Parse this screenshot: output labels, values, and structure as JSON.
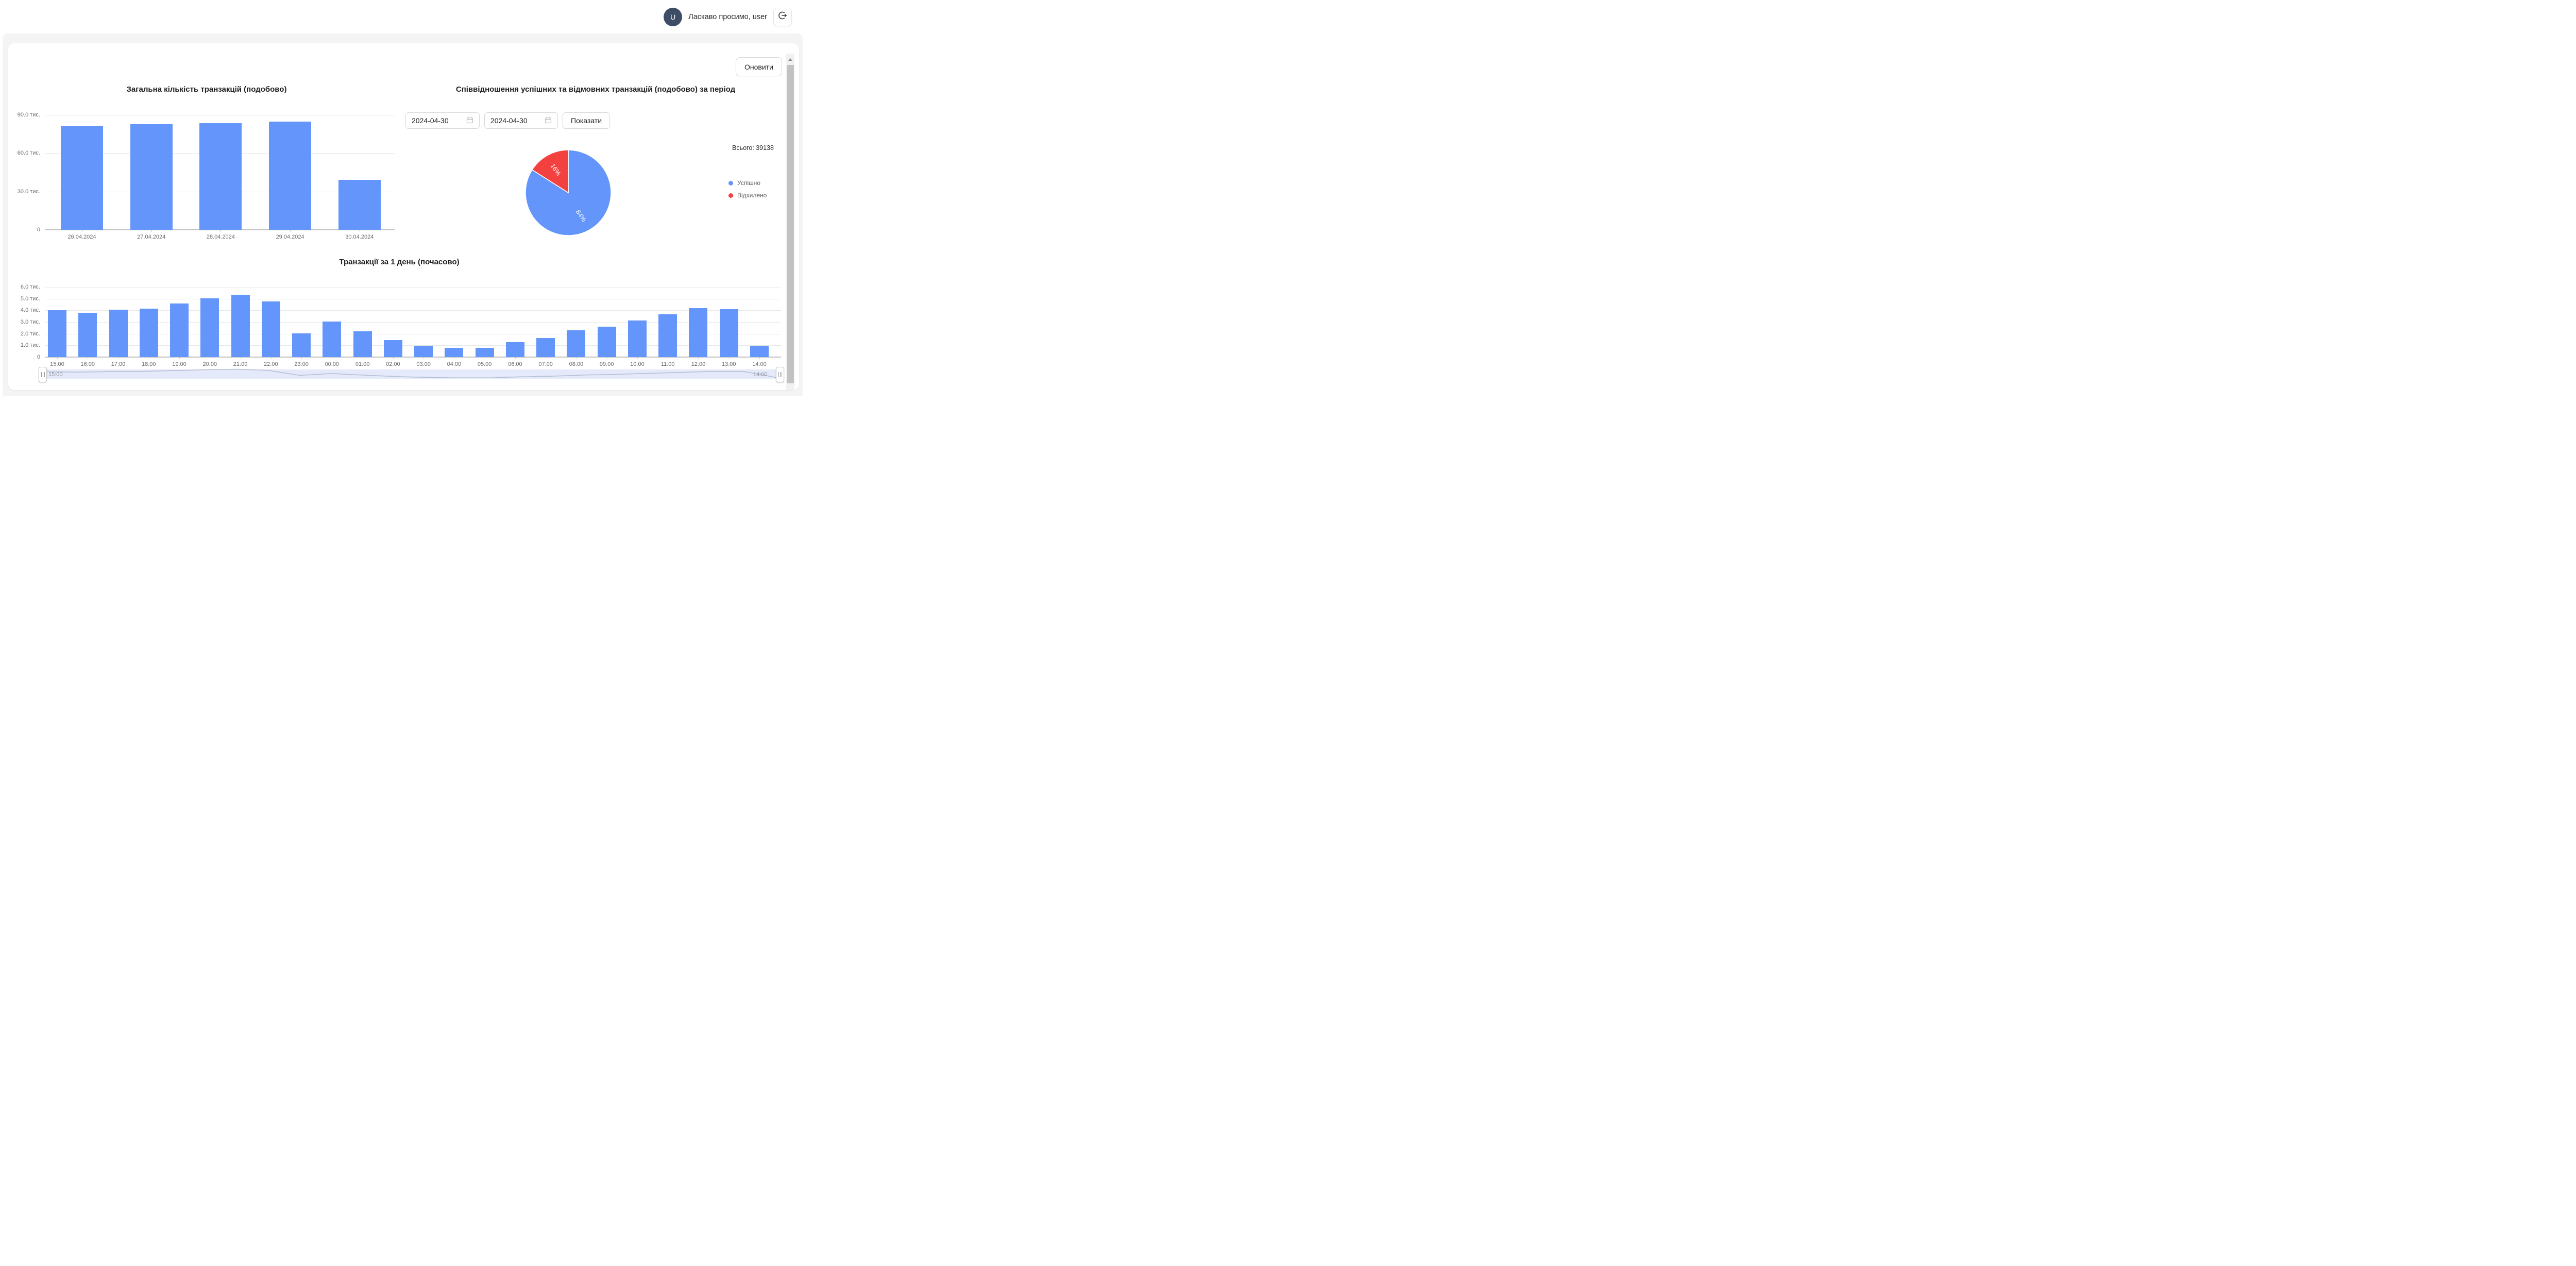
{
  "header": {
    "avatar_initial": "U",
    "welcome": "Ласкаво просимо, user"
  },
  "toolbar": {
    "refresh_label": "Оновити"
  },
  "controls": {
    "date_from": "2024-04-30",
    "date_to": "2024-04-30",
    "show_label": "Показати"
  },
  "colors": {
    "primary_bar": "#6495fa",
    "success": "#6495fa",
    "declined": "#f3413f",
    "avatar_bg": "#3d4d66",
    "range_band": "#e4eafa",
    "range_curve": "#b6bdd1"
  },
  "chart_data": [
    {
      "type": "bar",
      "title": "Загальна кількість транзакцій (подобово)",
      "unit": "тис.",
      "categories": [
        "26.04.2024",
        "27.04.2024",
        "28.04.2024",
        "29.04.2024",
        "30.04.2024"
      ],
      "values": [
        81.2,
        82.6,
        83.5,
        84.8,
        39.1
      ],
      "ylim": [
        0,
        90
      ],
      "ytick_step": 30,
      "grid": true,
      "legend_position": "none"
    },
    {
      "type": "pie",
      "title": "Співвідношення успішних та відмовних транзакцій (подобово) за період",
      "total_label": "Всього: 39138",
      "slices": [
        {
          "label": "Успішно",
          "percent": 84,
          "color": "#6495fa"
        },
        {
          "label": "Відхилено",
          "percent": 16,
          "color": "#f3413f"
        }
      ],
      "legend_position": "right"
    },
    {
      "type": "bar",
      "title": "Транзакції за 1 день (почасово)",
      "unit": "тис.",
      "categories": [
        "15:00",
        "16:00",
        "17:00",
        "18:00",
        "19:00",
        "20:00",
        "21:00",
        "22:00",
        "23:00",
        "00:00",
        "01:00",
        "02:00",
        "03:00",
        "04:00",
        "05:00",
        "06:00",
        "07:00",
        "08:00",
        "09:00",
        "10:00",
        "11:00",
        "12:00",
        "13:00",
        "14:00"
      ],
      "values": [
        4.0,
        3.8,
        4.05,
        4.15,
        4.6,
        5.05,
        5.35,
        4.75,
        2.05,
        3.05,
        2.2,
        1.45,
        0.95,
        0.78,
        0.78,
        1.28,
        1.65,
        2.28,
        2.6,
        3.15,
        3.65,
        4.2,
        4.1,
        0.95
      ],
      "ylim": [
        0,
        6
      ],
      "ytick_step": 1,
      "grid": true,
      "range_slider": {
        "start_label": "15:00",
        "end_label": "14:00"
      }
    }
  ]
}
